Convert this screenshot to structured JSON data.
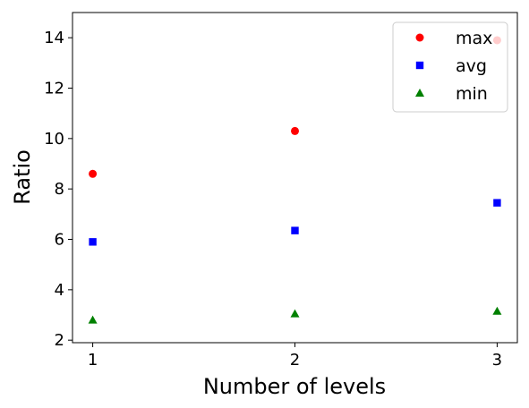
{
  "chart_data": {
    "type": "scatter",
    "xlabel": "Number of levels",
    "ylabel": "Ratio",
    "x": [
      1,
      2,
      3
    ],
    "xticks": [
      "1",
      "2",
      "3"
    ],
    "yticks": [
      "2",
      "4",
      "6",
      "8",
      "10",
      "12",
      "14"
    ],
    "xlim": [
      0.9,
      3.1
    ],
    "ylim": [
      1.9,
      15.0
    ],
    "grid": false,
    "legend_position": "top-right",
    "series": [
      {
        "name": "max",
        "values": [
          8.6,
          10.3,
          13.9
        ],
        "color": "#ff0000",
        "marker": "circle"
      },
      {
        "name": "avg",
        "values": [
          5.9,
          6.35,
          7.45
        ],
        "color": "#0000ff",
        "marker": "square"
      },
      {
        "name": "min",
        "values": [
          2.8,
          3.05,
          3.15
        ],
        "color": "#008000",
        "marker": "triangle"
      }
    ]
  }
}
